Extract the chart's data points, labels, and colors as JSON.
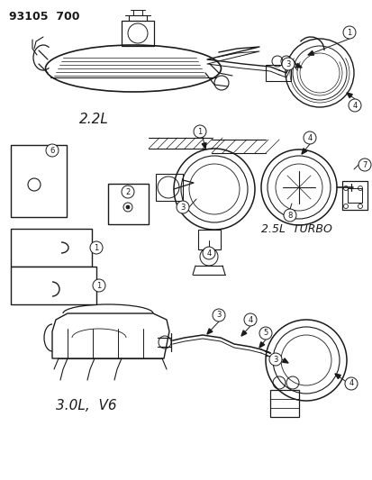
{
  "title": "93105  700",
  "bg_color": "#ffffff",
  "line_color": "#1a1a1a",
  "labels": {
    "top_section": "2.2L",
    "middle_section": "2.5L  TURBO",
    "bottom_section": "3.0L,  V6"
  },
  "figsize": [
    4.14,
    5.33
  ],
  "dpi": 100
}
